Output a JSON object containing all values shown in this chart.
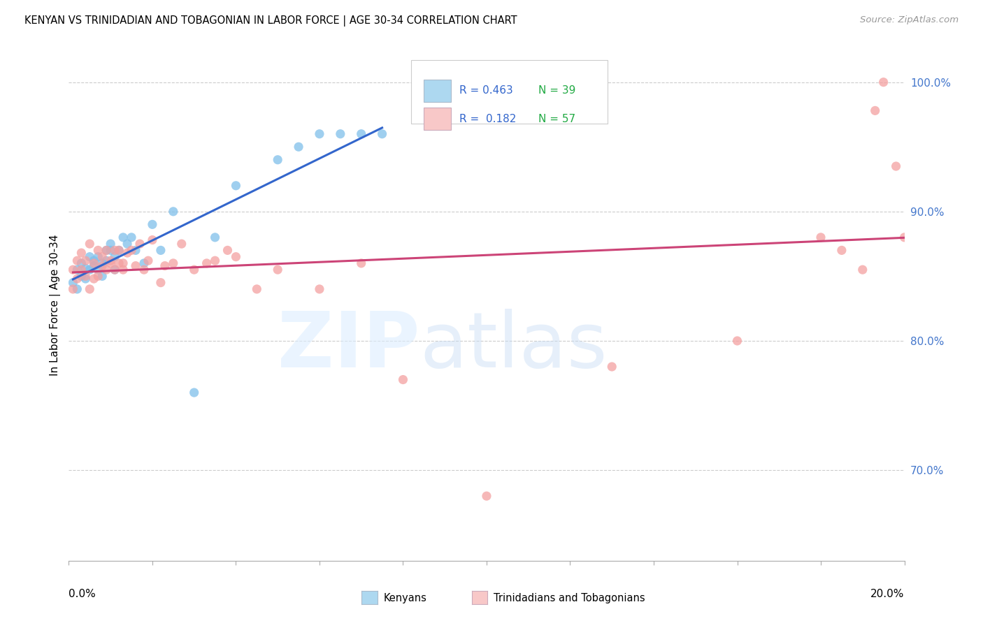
{
  "title": "KENYAN VS TRINIDADIAN AND TOBAGONIAN IN LABOR FORCE | AGE 30-34 CORRELATION CHART",
  "source": "Source: ZipAtlas.com",
  "ylabel": "In Labor Force | Age 30-34",
  "right_yticks": [
    0.7,
    0.8,
    0.9,
    1.0
  ],
  "right_ytick_labels": [
    "70.0%",
    "80.0%",
    "90.0%",
    "100.0%"
  ],
  "blue_color": "#7fbfea",
  "pink_color": "#f4a0a0",
  "blue_line_color": "#3366cc",
  "pink_line_color": "#cc4477",
  "legend_blue_color": "#add8f0",
  "legend_pink_color": "#f8c8c8",
  "kenyan_x": [
    0.001,
    0.002,
    0.002,
    0.003,
    0.003,
    0.004,
    0.004,
    0.005,
    0.005,
    0.006,
    0.006,
    0.007,
    0.007,
    0.008,
    0.008,
    0.009,
    0.009,
    0.01,
    0.01,
    0.011,
    0.011,
    0.012,
    0.013,
    0.014,
    0.015,
    0.016,
    0.018,
    0.02,
    0.022,
    0.025,
    0.03,
    0.035,
    0.04,
    0.05,
    0.055,
    0.06,
    0.065,
    0.07,
    0.075
  ],
  "kenyan_y": [
    0.845,
    0.84,
    0.855,
    0.85,
    0.86,
    0.848,
    0.856,
    0.855,
    0.865,
    0.858,
    0.862,
    0.855,
    0.865,
    0.85,
    0.86,
    0.87,
    0.862,
    0.87,
    0.875,
    0.865,
    0.855,
    0.87,
    0.88,
    0.875,
    0.88,
    0.87,
    0.86,
    0.89,
    0.87,
    0.9,
    0.76,
    0.88,
    0.92,
    0.94,
    0.95,
    0.96,
    0.96,
    0.96,
    0.96
  ],
  "trini_x": [
    0.001,
    0.001,
    0.002,
    0.002,
    0.003,
    0.003,
    0.004,
    0.004,
    0.005,
    0.005,
    0.006,
    0.006,
    0.007,
    0.007,
    0.008,
    0.008,
    0.009,
    0.009,
    0.01,
    0.01,
    0.011,
    0.011,
    0.012,
    0.012,
    0.013,
    0.013,
    0.014,
    0.015,
    0.016,
    0.017,
    0.018,
    0.019,
    0.02,
    0.022,
    0.023,
    0.025,
    0.027,
    0.03,
    0.033,
    0.035,
    0.038,
    0.04,
    0.045,
    0.05,
    0.06,
    0.07,
    0.08,
    0.1,
    0.13,
    0.16,
    0.18,
    0.185,
    0.19,
    0.193,
    0.195,
    0.198,
    0.2
  ],
  "trini_y": [
    0.84,
    0.855,
    0.848,
    0.862,
    0.855,
    0.868,
    0.85,
    0.862,
    0.84,
    0.875,
    0.848,
    0.86,
    0.85,
    0.87,
    0.858,
    0.865,
    0.855,
    0.87,
    0.862,
    0.86,
    0.87,
    0.855,
    0.86,
    0.87,
    0.86,
    0.855,
    0.868,
    0.87,
    0.858,
    0.875,
    0.855,
    0.862,
    0.878,
    0.845,
    0.858,
    0.86,
    0.875,
    0.855,
    0.86,
    0.862,
    0.87,
    0.865,
    0.84,
    0.855,
    0.84,
    0.86,
    0.77,
    0.68,
    0.78,
    0.8,
    0.88,
    0.87,
    0.855,
    0.978,
    1.0,
    0.935,
    0.88
  ],
  "xlim": [
    0.0,
    0.2
  ],
  "ylim": [
    0.63,
    1.025
  ]
}
